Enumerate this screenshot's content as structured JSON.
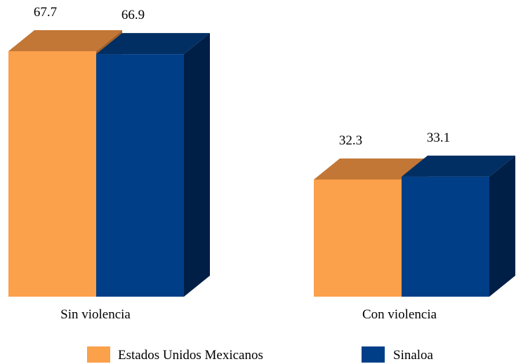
{
  "chart_data": {
    "type": "bar",
    "style": "3d-clustered",
    "categories": [
      "Sin violencia",
      "Con violencia"
    ],
    "series": [
      {
        "name": "Estados Unidos Mexicanos",
        "values": [
          67.7,
          32.3
        ],
        "color": "#FBA04B",
        "top_color": "#C27736",
        "side_color": "#A3612A"
      },
      {
        "name": "Sinaloa",
        "values": [
          66.9,
          33.1
        ],
        "color": "#003F87",
        "top_color": "#022F63",
        "side_color": "#001F47"
      }
    ],
    "ylim": [
      0,
      70
    ],
    "grid": false,
    "legend": "bottom",
    "show_data_labels": true
  }
}
